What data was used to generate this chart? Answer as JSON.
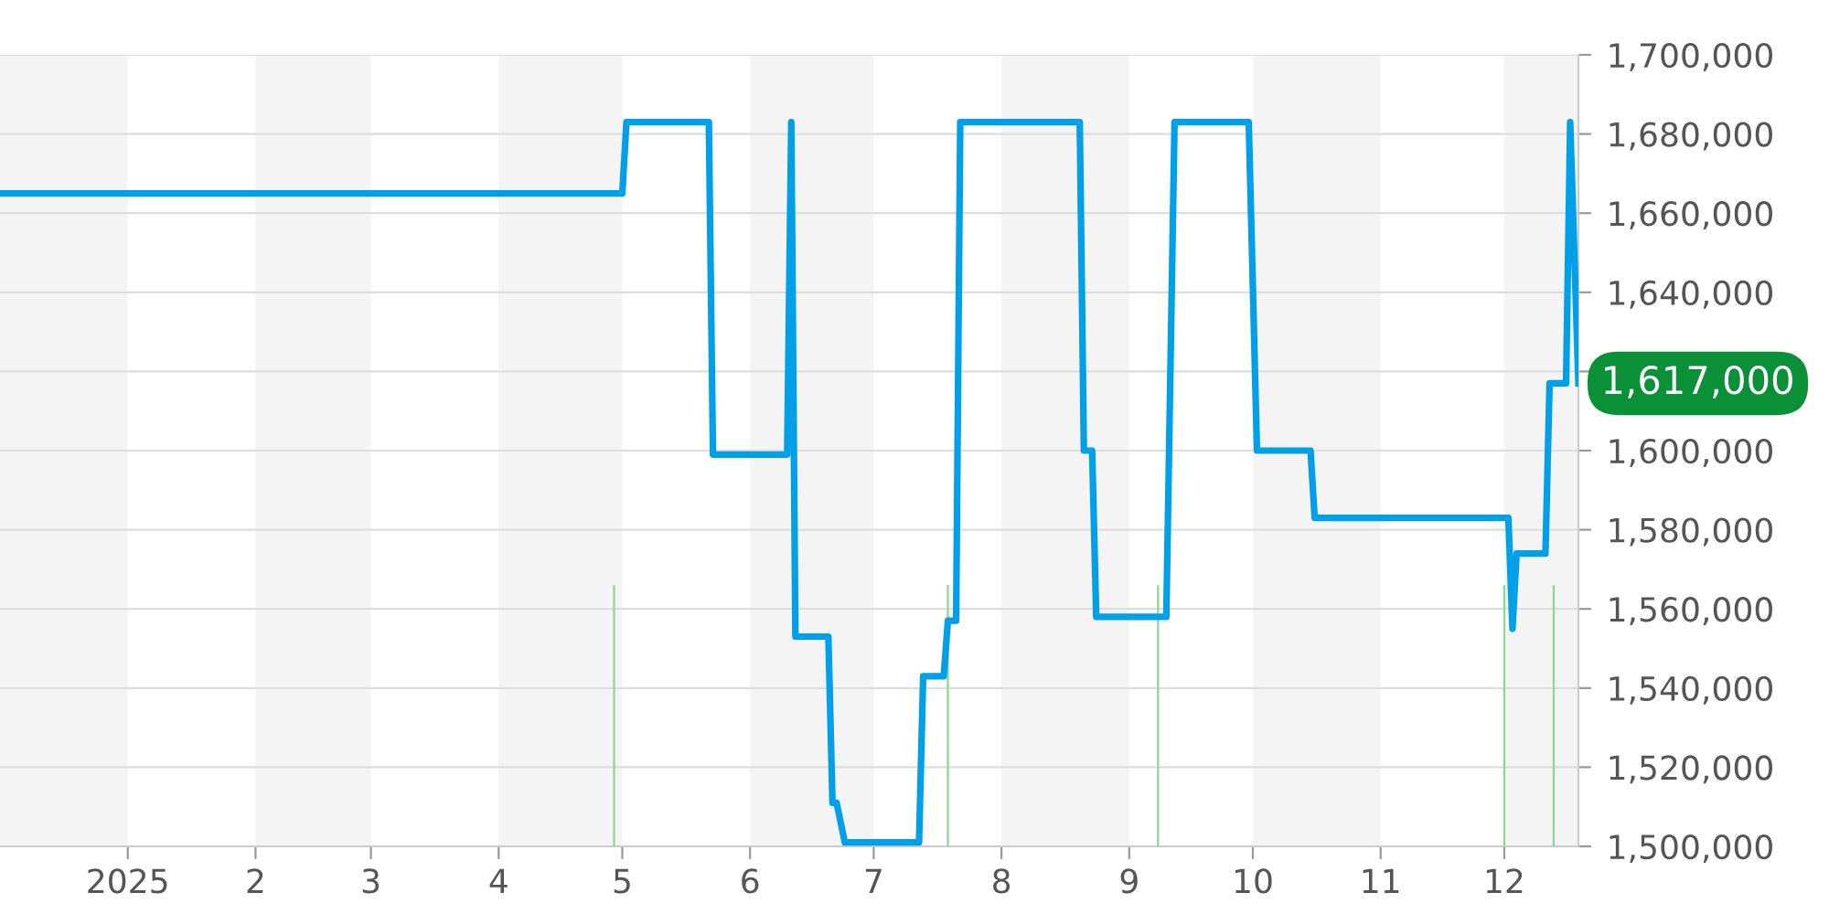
{
  "chart_data": {
    "type": "line",
    "xlim": [
      "2024-12-01",
      "2025-12-19"
    ],
    "xticks": [
      {
        "value": "2025-01-01",
        "label": "2025"
      },
      {
        "value": "2025-02-01",
        "label": "2"
      },
      {
        "value": "2025-03-01",
        "label": "3"
      },
      {
        "value": "2025-04-01",
        "label": "4"
      },
      {
        "value": "2025-05-01",
        "label": "5"
      },
      {
        "value": "2025-06-01",
        "label": "6"
      },
      {
        "value": "2025-07-01",
        "label": "7"
      },
      {
        "value": "2025-08-01",
        "label": "8"
      },
      {
        "value": "2025-09-01",
        "label": "9"
      },
      {
        "value": "2025-10-01",
        "label": "10"
      },
      {
        "value": "2025-11-01",
        "label": "11"
      },
      {
        "value": "2025-12-01",
        "label": "12"
      }
    ],
    "ylim": [
      1500000,
      1700000
    ],
    "yticks": [
      {
        "value": 1500000,
        "label": "1,500,000"
      },
      {
        "value": 1520000,
        "label": "1,520,000"
      },
      {
        "value": 1540000,
        "label": "1,540,000"
      },
      {
        "value": 1560000,
        "label": "1,560,000"
      },
      {
        "value": 1580000,
        "label": "1,580,000"
      },
      {
        "value": 1600000,
        "label": "1,600,000"
      },
      {
        "value": 1620000,
        "label": null
      },
      {
        "value": 1640000,
        "label": "1,640,000"
      },
      {
        "value": 1660000,
        "label": "1,660,000"
      },
      {
        "value": 1680000,
        "label": "1,680,000"
      },
      {
        "value": 1700000,
        "label": "1,700,000"
      }
    ],
    "grid": "y",
    "series": [
      {
        "color": "#00a0e9",
        "x": [
          "2024-12-01",
          "2025-05-01",
          "2025-05-02",
          "2025-05-22",
          "2025-05-23",
          "2025-06-10",
          "2025-06-11",
          "2025-06-12",
          "2025-06-20",
          "2025-06-21",
          "2025-06-22",
          "2025-06-24",
          "2025-07-12",
          "2025-07-13",
          "2025-07-18",
          "2025-07-19",
          "2025-07-21",
          "2025-07-22",
          "2025-08-20",
          "2025-08-21",
          "2025-08-23",
          "2025-08-24",
          "2025-09-10",
          "2025-09-12",
          "2025-09-30",
          "2025-10-02",
          "2025-10-15",
          "2025-10-16",
          "2025-12-02",
          "2025-12-03",
          "2025-12-04",
          "2025-12-11",
          "2025-12-12",
          "2025-12-16",
          "2025-12-17",
          "2025-12-19"
        ],
        "values": [
          1665000,
          1665000,
          1683000,
          1683000,
          1599000,
          1599000,
          1683000,
          1553000,
          1553000,
          1511000,
          1511000,
          1501000,
          1501000,
          1543000,
          1543000,
          1557000,
          1557000,
          1683000,
          1683000,
          1600000,
          1600000,
          1558000,
          1558000,
          1683000,
          1683000,
          1600000,
          1600000,
          1583000,
          1583000,
          1555000,
          1574000,
          1574000,
          1617000,
          1617000,
          1683000,
          1617000
        ]
      },
      {
        "type": "bar",
        "color": "#8fd694",
        "x": [
          "2025-04-29",
          "2025-07-19",
          "2025-09-08",
          "2025-12-01",
          "2025-12-13"
        ],
        "values": [
          1566000,
          1566000,
          1566000,
          1566000,
          1566000
        ]
      }
    ],
    "bands": [
      {
        "axis": "x",
        "from": "2024-12-01",
        "to": "2025-01-01",
        "color": "#f4f4f4"
      },
      {
        "axis": "x",
        "from": "2025-02-01",
        "to": "2025-03-01",
        "color": "#f4f4f4"
      },
      {
        "axis": "x",
        "from": "2025-04-01",
        "to": "2025-05-01",
        "color": "#f4f4f4"
      },
      {
        "axis": "x",
        "from": "2025-06-01",
        "to": "2025-07-01",
        "color": "#f4f4f4"
      },
      {
        "axis": "x",
        "from": "2025-08-01",
        "to": "2025-09-01",
        "color": "#f4f4f4"
      },
      {
        "axis": "x",
        "from": "2025-10-01",
        "to": "2025-11-01",
        "color": "#f4f4f4"
      },
      {
        "axis": "x",
        "from": "2025-12-01",
        "to": "2025-12-19",
        "color": "#f4f4f4"
      }
    ],
    "annotations": [
      {
        "text": "1,617,000",
        "x": "2025-12-19",
        "y": 1617000
      }
    ]
  }
}
